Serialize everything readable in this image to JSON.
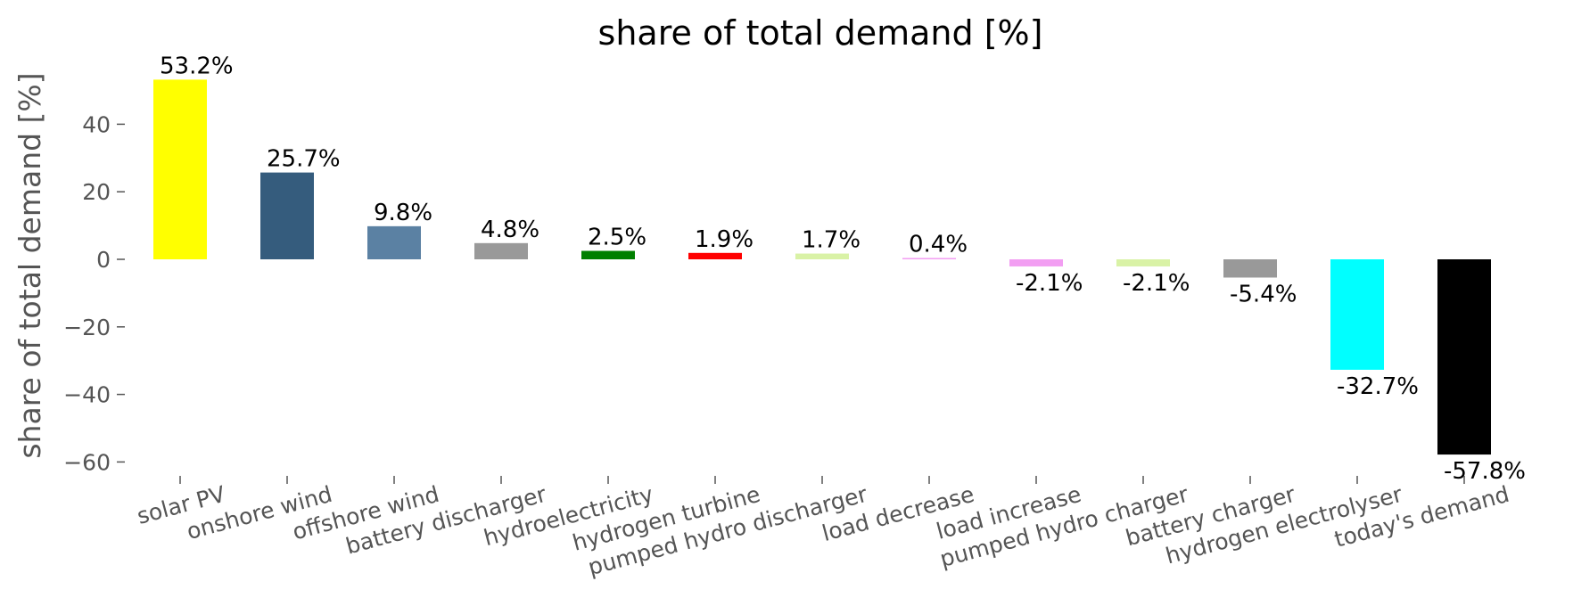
{
  "chart_data": {
    "type": "bar",
    "title": "share of total demand [%]",
    "ylabel": "share of total demand [%]",
    "xlabel": "",
    "ylim": [
      -65,
      60
    ],
    "yticks": [
      40,
      20,
      0,
      -20,
      -40,
      -60
    ],
    "ytick_labels": [
      "40",
      "20",
      "0",
      "−20",
      "−40",
      "−60"
    ],
    "grid": false,
    "categories": [
      "solar PV",
      "onshore wind",
      "offshore wind",
      "battery discharger",
      "hydroelectricity",
      "hydrogen turbine",
      "pumped hydro discharger",
      "load decrease",
      "load increase",
      "pumped hydro charger",
      "battery charger",
      "hydrogen electrolyser",
      "today's demand"
    ],
    "values": [
      53.2,
      25.7,
      9.8,
      4.8,
      2.5,
      1.9,
      1.7,
      0.4,
      -2.1,
      -2.1,
      -5.4,
      -32.7,
      -57.8
    ],
    "labels": [
      "53.2%",
      "25.7%",
      "9.8%",
      "4.8%",
      "2.5%",
      "1.9%",
      "1.7%",
      "0.4%",
      "-2.1%",
      "-2.1%",
      "-5.4%",
      "-32.7%",
      "-57.8%"
    ],
    "colors": [
      "#ffff00",
      "#355c7d",
      "#5b81a3",
      "#999999",
      "#008000",
      "#ff0000",
      "#d9f2a6",
      "#f29ef2",
      "#f29ef2",
      "#d9f2a6",
      "#999999",
      "#00ffff",
      "#000000"
    ]
  }
}
